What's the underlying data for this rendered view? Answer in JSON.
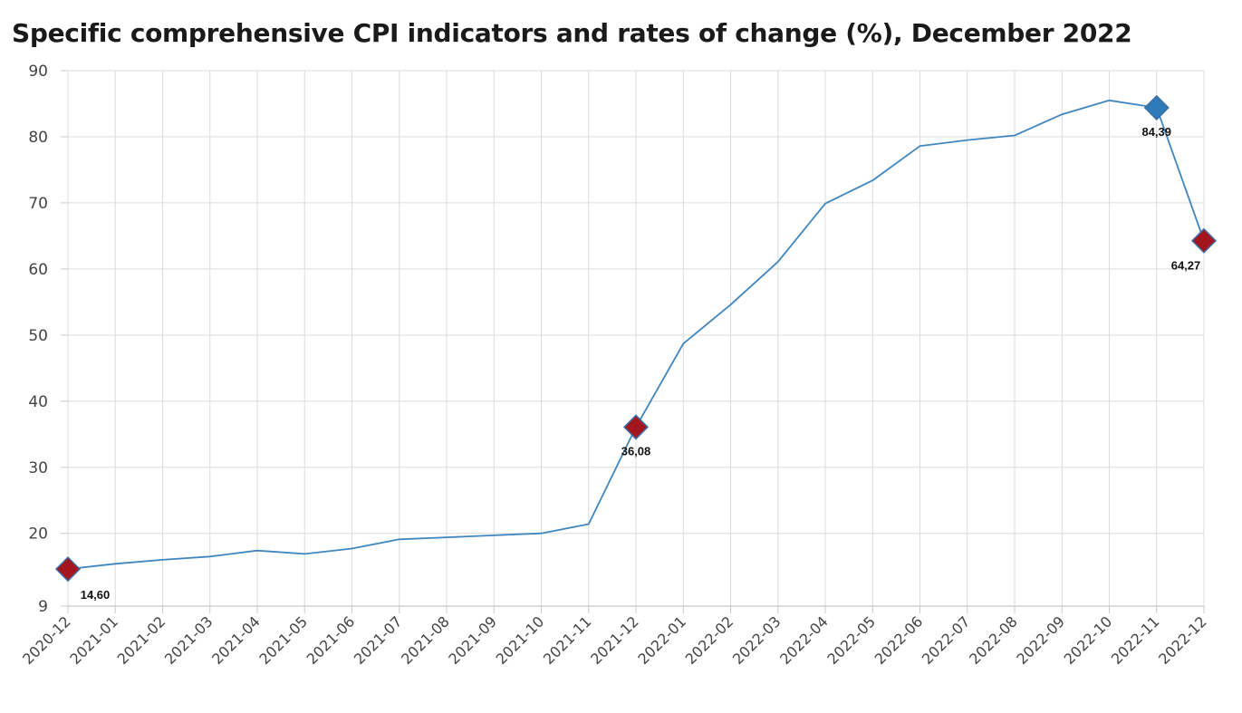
{
  "chart_data": {
    "type": "line",
    "title": "Specific comprehensive CPI indicators and rates of change (%), December 2022",
    "xlabel": "",
    "ylabel": "",
    "categories": [
      "2020-12",
      "2021-01",
      "2021-02",
      "2021-03",
      "2021-04",
      "2021-05",
      "2021-06",
      "2021-07",
      "2021-08",
      "2021-09",
      "2021-10",
      "2021-11",
      "2021-12",
      "2022-01",
      "2022-02",
      "2022-03",
      "2022-04",
      "2022-05",
      "2022-06",
      "2022-07",
      "2022-08",
      "2022-09",
      "2022-10",
      "2022-11",
      "2022-12"
    ],
    "series": [
      {
        "values": [
          14.6,
          15.4,
          16.0,
          16.5,
          17.4,
          16.9,
          17.7,
          19.1,
          19.4,
          19.7,
          20.0,
          21.4,
          36.08,
          48.7,
          54.6,
          61.1,
          69.9,
          73.4,
          78.6,
          79.5,
          80.2,
          83.4,
          85.5,
          84.39,
          64.27
        ]
      }
    ],
    "ylim": [
      9,
      90
    ],
    "y_ticks": [
      9,
      20,
      30,
      40,
      50,
      60,
      70,
      80,
      90
    ],
    "grid": true,
    "legend": "none",
    "highlights": [
      {
        "index": 0,
        "label": "14,60",
        "color": "#a3161d"
      },
      {
        "index": 12,
        "label": "36,08",
        "color": "#a3161d"
      },
      {
        "index": 23,
        "label": "84,39",
        "color": "#2f7ab9"
      },
      {
        "index": 24,
        "label": "64,27",
        "color": "#a3161d"
      }
    ],
    "line_color": "#3f86bf",
    "grid_color": "#dcdcdc"
  }
}
